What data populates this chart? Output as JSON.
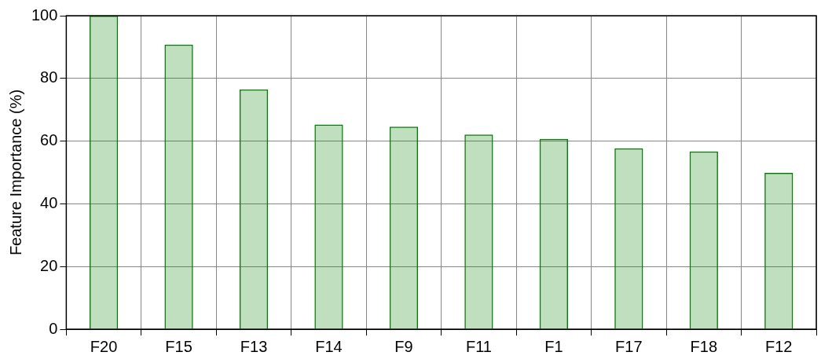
{
  "chart_data": {
    "type": "bar",
    "ylabel": "Feature Importance (%)",
    "categories": [
      "F20",
      "F15",
      "F13",
      "F14",
      "F9",
      "F11",
      "F1",
      "F17",
      "F18",
      "F12"
    ],
    "values": [
      100,
      90.8,
      76.5,
      65.3,
      64.6,
      62.1,
      60.7,
      57.7,
      56.7,
      49.9
    ],
    "color": "#008000",
    "ylim": [
      0,
      100
    ],
    "yticks": [
      0,
      20,
      40,
      60,
      80,
      100
    ],
    "grid": true,
    "legend": false
  }
}
